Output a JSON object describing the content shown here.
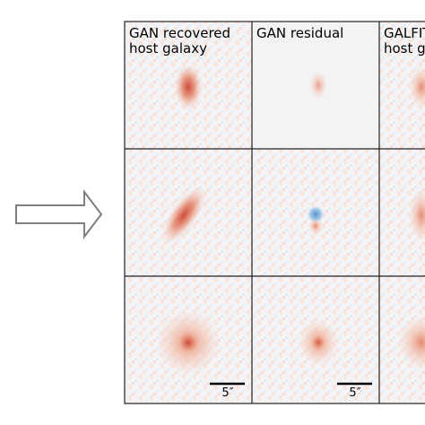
{
  "panels": {
    "columns": [
      {
        "title": [
          "GAN recovered",
          "host galaxy"
        ]
      },
      {
        "title": [
          "GAN residual"
        ]
      },
      {
        "title": [
          "GALFIT",
          "host galaxy"
        ]
      }
    ],
    "scale_bars": [
      "5″",
      "5″"
    ]
  }
}
